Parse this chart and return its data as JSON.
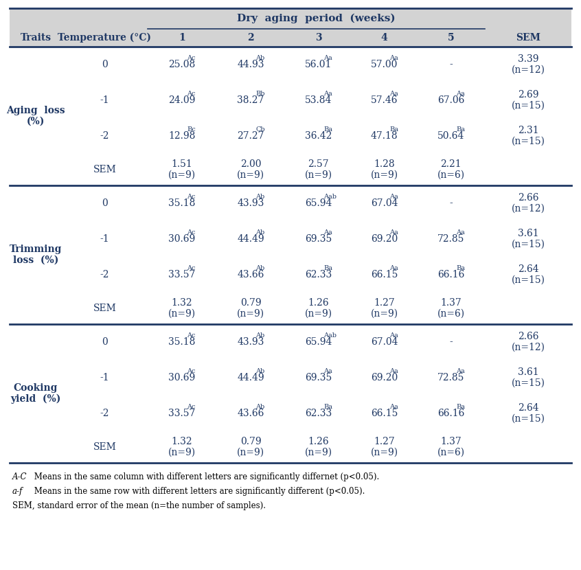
{
  "title": "Dry  aging  period  (weeks)",
  "col_headers": [
    "Traits",
    "Temperature (°C)",
    "1",
    "2",
    "3",
    "4",
    "5",
    "SEM"
  ],
  "sections": [
    {
      "trait": "Aging  loss\n(%)",
      "rows": [
        {
          "temp": "0",
          "v1": "25.08",
          "s1": "Ac",
          "v2": "44.93",
          "s2": "Ab",
          "v3": "56.01",
          "s3": "Aa",
          "v4": "57.00",
          "s4": "Aa",
          "v5": "-",
          "s5": "",
          "sem": "3.39\n(n=12)"
        },
        {
          "temp": "-1",
          "v1": "24.09",
          "s1": "Ac",
          "v2": "38.27",
          "s2": "Bb",
          "v3": "53.84",
          "s3": "Aa",
          "v4": "57.46",
          "s4": "Aa",
          "v5": "67.06",
          "s5": "Aa",
          "sem": "2.69\n(n=15)"
        },
        {
          "temp": "-2",
          "v1": "12.98",
          "s1": "Bc",
          "v2": "27.27",
          "s2": "Cb",
          "v3": "36.42",
          "s3": "Ba",
          "v4": "47.18",
          "s4": "Ba",
          "v5": "50.64",
          "s5": "Ba",
          "sem": "2.31\n(n=15)"
        },
        {
          "temp": "SEM",
          "v1": "1.51\n(n=9)",
          "s1": "",
          "v2": "2.00\n(n=9)",
          "s2": "",
          "v3": "2.57\n(n=9)",
          "s3": "",
          "v4": "1.28\n(n=9)",
          "s4": "",
          "v5": "2.21\n(n=6)",
          "s5": "",
          "sem": ""
        }
      ]
    },
    {
      "trait": "Trimming\nloss  (%)",
      "rows": [
        {
          "temp": "0",
          "v1": "35.18",
          "s1": "Ac",
          "v2": "43.93",
          "s2": "Ab",
          "v3": "65.94",
          "s3": "Aab",
          "v4": "67.04",
          "s4": "Aa",
          "v5": "-",
          "s5": "",
          "sem": "2.66\n(n=12)"
        },
        {
          "temp": "-1",
          "v1": "30.69",
          "s1": "Ac",
          "v2": "44.49",
          "s2": "Ab",
          "v3": "69.35",
          "s3": "Aa",
          "v4": "69.20",
          "s4": "Aa",
          "v5": "72.85",
          "s5": "Aa",
          "sem": "3.61\n(n=15)"
        },
        {
          "temp": "-2",
          "v1": "33.57",
          "s1": "Ac",
          "v2": "43.66",
          "s2": "Ab",
          "v3": "62.33",
          "s3": "Ba",
          "v4": "66.15",
          "s4": "Aa",
          "v5": "66.16",
          "s5": "Ba",
          "sem": "2.64\n(n=15)"
        },
        {
          "temp": "SEM",
          "v1": "1.32\n(n=9)",
          "s1": "",
          "v2": "0.79\n(n=9)",
          "s2": "",
          "v3": "1.26\n(n=9)",
          "s3": "",
          "v4": "1.27\n(n=9)",
          "s4": "",
          "v5": "1.37\n(n=6)",
          "s5": "",
          "sem": ""
        }
      ]
    },
    {
      "trait": "Cooking\nyield  (%)",
      "rows": [
        {
          "temp": "0",
          "v1": "35.18",
          "s1": "Ac",
          "v2": "43.93",
          "s2": "Ab",
          "v3": "65.94",
          "s3": "Aab",
          "v4": "67.04",
          "s4": "Aa",
          "v5": "-",
          "s5": "",
          "sem": "2.66\n(n=12)"
        },
        {
          "temp": "-1",
          "v1": "30.69",
          "s1": "Ac",
          "v2": "44.49",
          "s2": "Ab",
          "v3": "69.35",
          "s3": "Aa",
          "v4": "69.20",
          "s4": "Aa",
          "v5": "72.85",
          "s5": "Aa",
          "sem": "3.61\n(n=15)"
        },
        {
          "temp": "-2",
          "v1": "33.57",
          "s1": "Ac",
          "v2": "43.66",
          "s2": "Ab",
          "v3": "62.33",
          "s3": "Ba",
          "v4": "66.15",
          "s4": "Aa",
          "v5": "66.16",
          "s5": "Ba",
          "sem": "2.64\n(n=15)"
        },
        {
          "temp": "SEM",
          "v1": "1.32\n(n=9)",
          "s1": "",
          "v2": "0.79\n(n=9)",
          "s2": "",
          "v3": "1.26\n(n=9)",
          "s3": "",
          "v4": "1.27\n(n=9)",
          "s4": "",
          "v5": "1.37\n(n=6)",
          "s5": "",
          "sem": ""
        }
      ]
    }
  ],
  "footnotes": [
    [
      "A-C",
      " Means in the same column with different letters are significantly differnet (p<0.05)."
    ],
    [
      "a-f",
      " Means in the same row with different letters are significantly different (p<0.05)."
    ],
    [
      "",
      "SEM, standard error of the mean (n=the number of samples)."
    ]
  ],
  "bg_color": "#d3d3d3",
  "text_color": "#1f3864",
  "body_bg": "#ffffff"
}
